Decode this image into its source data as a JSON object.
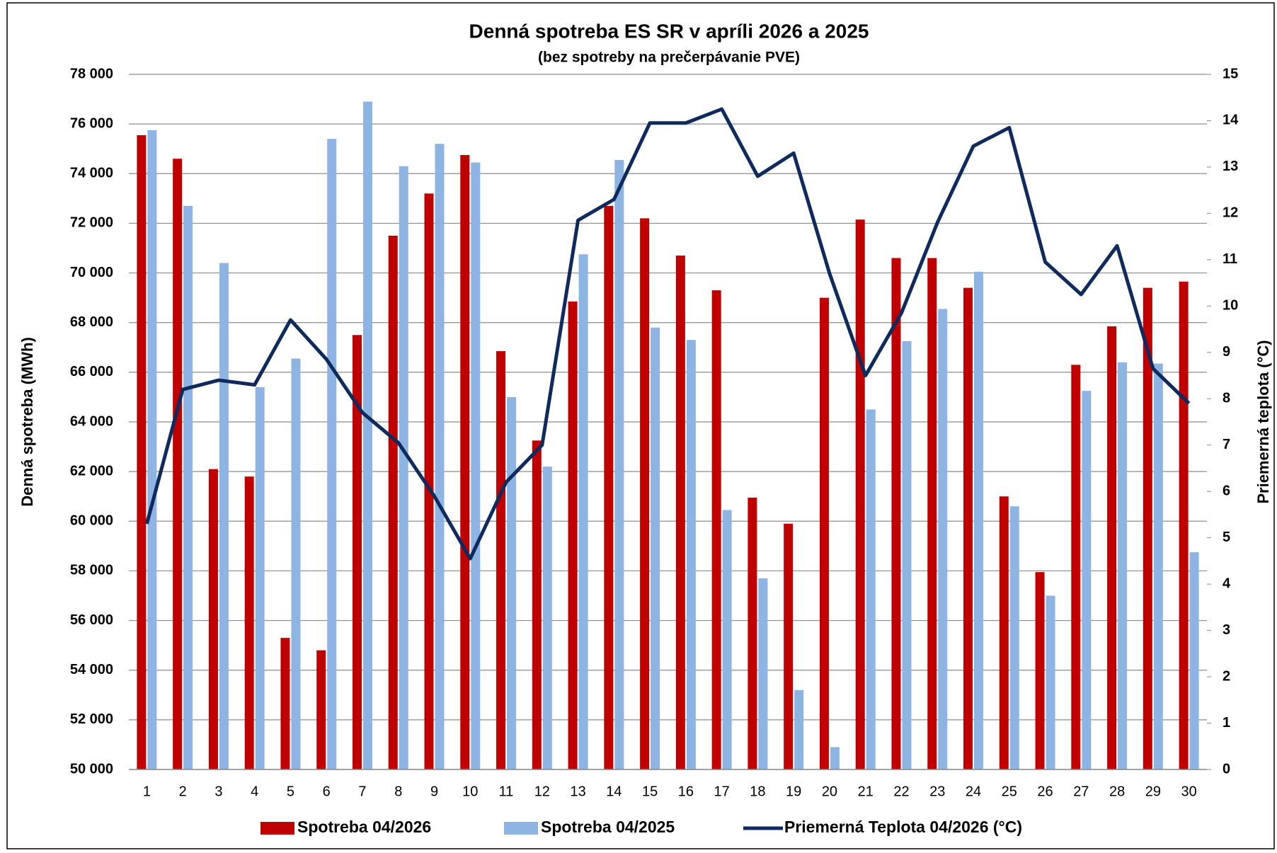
{
  "chart_data": {
    "type": "bar",
    "title": "Denná spotreba ES SR v apríli 2026 a 2025",
    "subtitle": "(bez spotreby na prečerpávanie PVE)",
    "y_label": "Denná spotreba (MWh)",
    "y2_label": "Priemerná teplota (°C)",
    "categories": [
      "1",
      "2",
      "3",
      "4",
      "5",
      "6",
      "7",
      "8",
      "9",
      "10",
      "11",
      "12",
      "13",
      "14",
      "15",
      "16",
      "17",
      "18",
      "19",
      "20",
      "21",
      "22",
      "23",
      "24",
      "25",
      "26",
      "27",
      "28",
      "29",
      "30"
    ],
    "series": [
      {
        "name": "Spotreba 04/2026",
        "color": "#c00000",
        "values": [
          75550,
          74600,
          62100,
          61800,
          55300,
          54800,
          67500,
          71500,
          73200,
          74750,
          66850,
          63250,
          68850,
          72700,
          72200,
          70700,
          69300,
          60950,
          59900,
          69000,
          72150,
          70600,
          70600,
          69400,
          61000,
          57950,
          66300,
          67850,
          69400,
          69650
        ]
      },
      {
        "name": "Spotreba 04/2025",
        "color": "#8db4e2",
        "values": [
          75750,
          72700,
          70400,
          65400,
          66550,
          75400,
          76900,
          74300,
          75200,
          74450,
          65000,
          62200,
          70750,
          74550,
          67800,
          67300,
          60450,
          57700,
          53200,
          50900,
          64500,
          67250,
          68550,
          70050,
          60600,
          57000,
          65250,
          66400,
          66350,
          58750
        ]
      },
      {
        "name": "Priemerná Teplota 04/2026 (°C)",
        "color": "#0f2a5c",
        "type": "line",
        "axis": "y2",
        "values": [
          5.3,
          8.2,
          8.4,
          8.3,
          9.7,
          8.85,
          7.7,
          7.05,
          5.9,
          4.55,
          6.2,
          7.0,
          11.85,
          12.3,
          13.95,
          13.95,
          14.25,
          12.8,
          13.3,
          10.7,
          8.5,
          9.85,
          11.8,
          13.45,
          13.85,
          10.95,
          10.25,
          11.3,
          8.65,
          7.9
        ]
      }
    ],
    "ylim": [
      50000,
      78000
    ],
    "yticks": [
      {
        "value": 50000,
        "label": "50 000"
      },
      {
        "value": 52000,
        "label": "52 000"
      },
      {
        "value": 54000,
        "label": "54 000"
      },
      {
        "value": 56000,
        "label": "56 000"
      },
      {
        "value": 58000,
        "label": "58 000"
      },
      {
        "value": 60000,
        "label": "60 000"
      },
      {
        "value": 62000,
        "label": "62 000"
      },
      {
        "value": 64000,
        "label": "64 000"
      },
      {
        "value": 66000,
        "label": "66 000"
      },
      {
        "value": 68000,
        "label": "68 000"
      },
      {
        "value": 70000,
        "label": "70 000"
      },
      {
        "value": 72000,
        "label": "72 000"
      },
      {
        "value": 74000,
        "label": "74 000"
      },
      {
        "value": 76000,
        "label": "76 000"
      },
      {
        "value": 78000,
        "label": "78 000"
      }
    ],
    "y2lim": [
      0,
      15
    ],
    "y2ticks": [
      0,
      1,
      2,
      3,
      4,
      5,
      6,
      7,
      8,
      9,
      10,
      11,
      12,
      13,
      14,
      15
    ],
    "grid": true,
    "legend": "bottom"
  }
}
